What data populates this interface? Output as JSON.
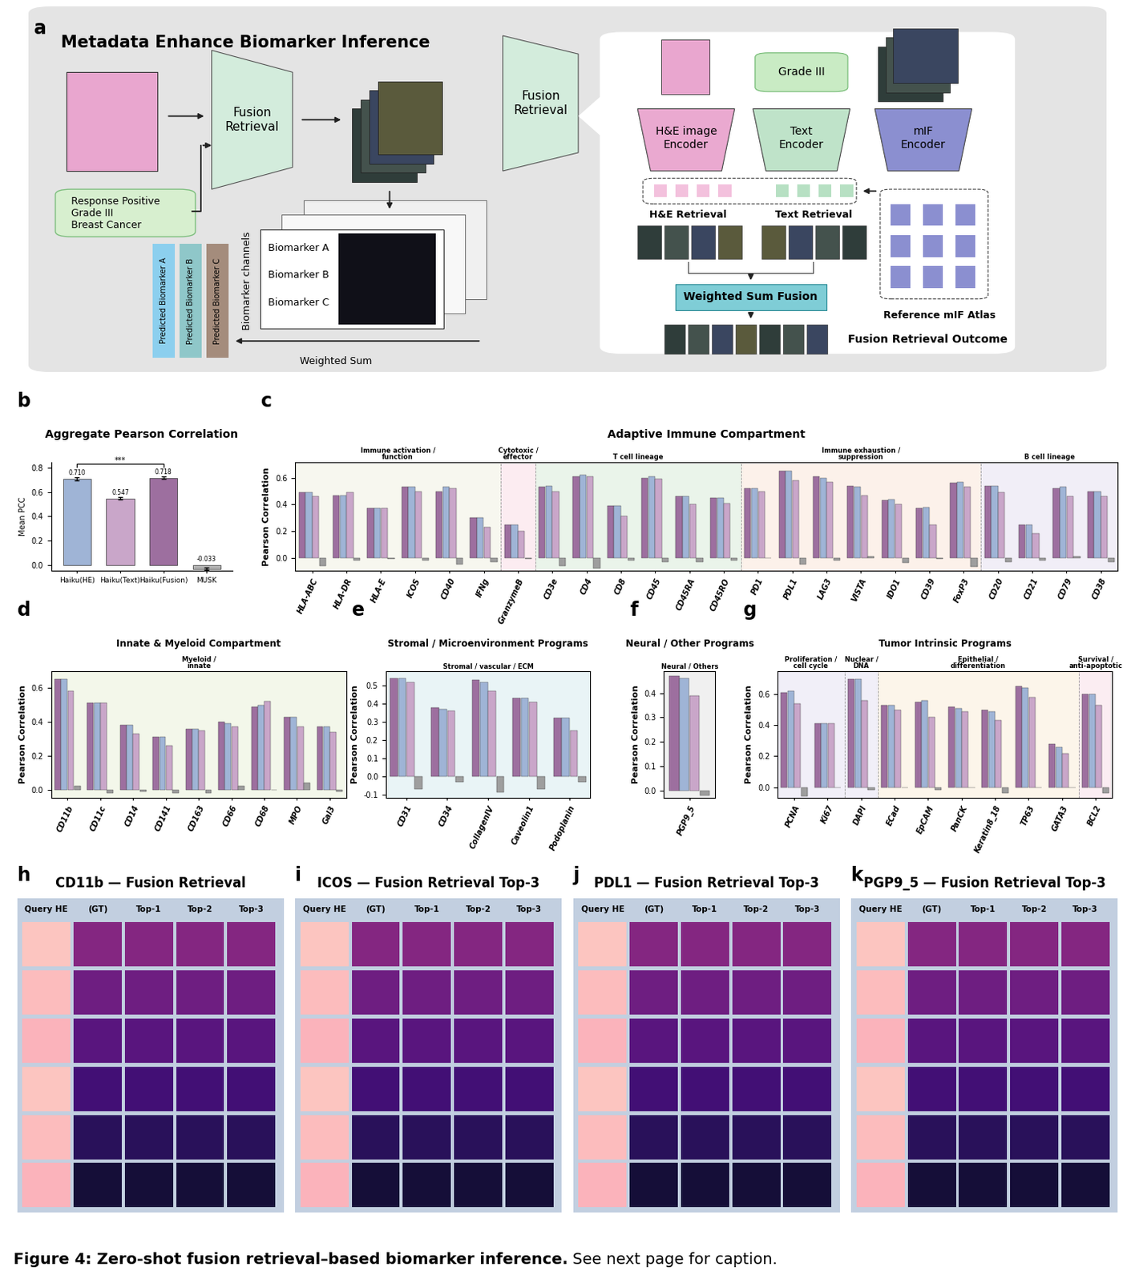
{
  "panel_a": {
    "panel": "a",
    "title": "Metadata Enhance Biomarker Inference",
    "fusion_block": "Fusion\nRetrieval",
    "metadata": "Response Positive\nGrade III\nBreast Cancer",
    "biomarkers": [
      "Biomarker A",
      "Biomarker B",
      "Biomarker C"
    ],
    "channels_label": "Biomarker channels",
    "predicted": [
      "Predicted Biomarker A",
      "Predicted Biomarker B",
      "Predicted Biomarker C"
    ],
    "weighted_sum": "Weighted Sum",
    "grade_box": "Grade III",
    "he_encoder": "H&E image\nEncoder",
    "text_encoder": "Text\nEncoder",
    "mif_encoder": "mIF\nEncoder",
    "he_retrieval": "H&E Retrieval",
    "text_retrieval": "Text Retrieval",
    "fusion_box": "Weighted Sum Fusion",
    "atlas": "Reference mIF Atlas",
    "outcome": "Fusion Retrieval Outcome"
  },
  "chart_data": [
    {
      "panel": "b",
      "type": "bar",
      "title": "Aggregate Pearson Correlation",
      "ylabel": "Mean PCC",
      "categories": [
        "Haiku(HE)",
        "Haiku(Text)",
        "Haiku(Fusion)",
        "MUSK"
      ],
      "values": [
        0.71,
        0.547,
        0.718,
        -0.033
      ],
      "value_labels": [
        "0.710",
        "0.547",
        "0.718",
        "-0.033"
      ],
      "errors": [
        0.01,
        0.01,
        0.01,
        0.01
      ],
      "colors": [
        "#9fb4d6",
        "#c9a6c9",
        "#9d6f9f",
        "#b0b0b0"
      ],
      "data_labels": true,
      "annotations": [
        {
          "text": "***",
          "from": "Haiku(HE)",
          "to": "Haiku(Fusion)"
        }
      ],
      "ylim": [
        -0.05,
        0.85
      ],
      "yticks": [
        0.0,
        0.2,
        0.4,
        0.6,
        0.8
      ]
    },
    {
      "panel": "c",
      "type": "bar",
      "title": "Adaptive Immune Compartment",
      "ylabel": "Pearson Correlation",
      "categories": [
        "HLA-ABC",
        "HLA-DR",
        "HLA-E",
        "ICOS",
        "CD40",
        "IFNg",
        "GranzymeB",
        "CD3e",
        "CD4",
        "CD8",
        "CD45",
        "CD45RA",
        "CD45RO",
        "PD1",
        "PDL1",
        "LAG3",
        "VISTA",
        "IDO1",
        "CD39",
        "FoxP3",
        "CD20",
        "CD21",
        "CD79",
        "CD38"
      ],
      "series": [
        {
          "color": "#9d6f9f",
          "values": [
            0.49,
            0.47,
            0.37,
            0.53,
            0.5,
            0.3,
            0.25,
            0.53,
            0.61,
            0.39,
            0.6,
            0.46,
            0.45,
            0.52,
            0.65,
            0.61,
            0.54,
            0.43,
            0.37,
            0.56,
            0.54,
            0.25,
            0.52,
            0.5
          ]
        },
        {
          "color": "#9fb4d6",
          "values": [
            0.49,
            0.47,
            0.37,
            0.53,
            0.53,
            0.3,
            0.25,
            0.54,
            0.62,
            0.39,
            0.61,
            0.46,
            0.45,
            0.52,
            0.65,
            0.6,
            0.53,
            0.44,
            0.38,
            0.57,
            0.54,
            0.25,
            0.53,
            0.5
          ]
        },
        {
          "color": "#c9a6c9",
          "values": [
            0.46,
            0.49,
            0.375,
            0.5,
            0.52,
            0.23,
            0.2,
            0.5,
            0.61,
            0.31,
            0.59,
            0.4,
            0.41,
            0.5,
            0.58,
            0.57,
            0.47,
            0.4,
            0.25,
            0.53,
            0.49,
            0.18,
            0.46,
            0.46
          ]
        },
        {
          "color": "#9e9e9e",
          "values": [
            -0.06,
            -0.02,
            -0.01,
            -0.02,
            -0.05,
            -0.03,
            -0.01,
            -0.06,
            -0.08,
            -0.02,
            -0.03,
            -0.03,
            -0.02,
            0.0,
            -0.05,
            -0.02,
            0.01,
            -0.04,
            -0.01,
            -0.07,
            -0.03,
            -0.02,
            0.01,
            -0.03
          ]
        }
      ],
      "groups": [
        {
          "label": "Immune activation /\nfunction",
          "categories": [
            "HLA-ABC",
            "HLA-DR",
            "HLA-E",
            "ICOS",
            "CD40",
            "IFNg"
          ]
        },
        {
          "label": "Cytotoxic /\neffector",
          "categories": [
            "GranzymeB"
          ]
        },
        {
          "label": "T cell lineage",
          "categories": [
            "CD3e",
            "CD4",
            "CD8",
            "CD45",
            "CD45RA",
            "CD45RO"
          ]
        },
        {
          "label": "Immune exhaustion /\nsuppression",
          "categories": [
            "PD1",
            "PDL1",
            "LAG3",
            "VISTA",
            "IDO1",
            "CD39",
            "FoxP3"
          ]
        },
        {
          "label": "B cell lineage",
          "categories": [
            "CD20",
            "CD21",
            "CD79",
            "CD38"
          ]
        }
      ],
      "ylim": [
        -0.1,
        0.72
      ],
      "yticks": [
        0.0,
        0.2,
        0.4,
        0.6
      ]
    },
    {
      "panel": "d",
      "type": "bar",
      "title": "Innate & Myeloid Compartment",
      "ylabel": "Pearson Correlation",
      "categories": [
        "CD11b",
        "CD11c",
        "CD14",
        "CD141",
        "CD163",
        "CD66",
        "CD68",
        "MPO",
        "Gal3"
      ],
      "series": [
        {
          "color": "#9d6f9f",
          "values": [
            0.65,
            0.51,
            0.38,
            0.31,
            0.36,
            0.4,
            0.49,
            0.43,
            0.37
          ]
        },
        {
          "color": "#9fb4d6",
          "values": [
            0.65,
            0.51,
            0.38,
            0.31,
            0.36,
            0.39,
            0.5,
            0.43,
            0.37
          ]
        },
        {
          "color": "#c9a6c9",
          "values": [
            0.58,
            0.51,
            0.33,
            0.26,
            0.35,
            0.37,
            0.52,
            0.37,
            0.34
          ]
        },
        {
          "color": "#9e9e9e",
          "values": [
            0.02,
            -0.02,
            -0.01,
            -0.02,
            -0.02,
            0.02,
            0.0,
            0.04,
            -0.01
          ]
        }
      ],
      "groups": [
        {
          "label": "Myeloid /\ninnate",
          "categories": [
            "CD11b",
            "CD11c",
            "CD14",
            "CD141",
            "CD163",
            "CD66",
            "CD68",
            "MPO",
            "Gal3"
          ]
        }
      ],
      "ylim": [
        -0.05,
        0.7
      ],
      "yticks": [
        0.0,
        0.2,
        0.4,
        0.6
      ]
    },
    {
      "panel": "e",
      "type": "bar",
      "title": "Stromal / Microenvironment Programs",
      "ylabel": "Pearson Correlation",
      "categories": [
        "CD31",
        "CD34",
        "CollagenIV",
        "Caveolin1",
        "Podoplanin"
      ],
      "series": [
        {
          "color": "#9d6f9f",
          "values": [
            0.54,
            0.38,
            0.53,
            0.43,
            0.32
          ]
        },
        {
          "color": "#9fb4d6",
          "values": [
            0.54,
            0.37,
            0.52,
            0.43,
            0.32
          ]
        },
        {
          "color": "#c9a6c9",
          "values": [
            0.52,
            0.36,
            0.47,
            0.41,
            0.25
          ]
        },
        {
          "color": "#9e9e9e",
          "values": [
            -0.07,
            -0.03,
            -0.09,
            -0.07,
            -0.03
          ]
        }
      ],
      "groups": [
        {
          "label": "Stromal / vascular / ECM",
          "categories": [
            "CD31",
            "CD34",
            "CollagenIV",
            "Caveolin1",
            "Podoplanin"
          ]
        }
      ],
      "ylim": [
        -0.12,
        0.58
      ],
      "yticks": [
        -0.1,
        0.0,
        0.1,
        0.2,
        0.3,
        0.4,
        0.5
      ]
    },
    {
      "panel": "f",
      "type": "bar",
      "title": "Neural / Other Programs",
      "ylabel": "Pearson Correlation",
      "categories": [
        "PGP9_5"
      ],
      "series": [
        {
          "color": "#9d6f9f",
          "values": [
            0.47
          ]
        },
        {
          "color": "#9fb4d6",
          "values": [
            0.46
          ]
        },
        {
          "color": "#c9a6c9",
          "values": [
            0.39
          ]
        },
        {
          "color": "#9e9e9e",
          "values": [
            -0.02
          ]
        }
      ],
      "groups": [
        {
          "label": "Neural / Others",
          "categories": [
            "PGP9_5"
          ]
        }
      ],
      "ylim": [
        -0.03,
        0.49
      ],
      "yticks": [
        0.0,
        0.1,
        0.2,
        0.3,
        0.4
      ]
    },
    {
      "panel": "g",
      "type": "bar",
      "title": "Tumor Intrinsic Programs",
      "ylabel": "Pearson Correlation",
      "categories": [
        "PCNA",
        "Ki67",
        "DAPI",
        "ECad",
        "EpCAM",
        "PanCK",
        "Keratin8_18",
        "TP63",
        "GATA3",
        "BCL2"
      ],
      "series": [
        {
          "color": "#9d6f9f",
          "values": [
            0.61,
            0.41,
            0.7,
            0.53,
            0.55,
            0.52,
            0.5,
            0.65,
            0.28,
            0.6
          ]
        },
        {
          "color": "#9fb4d6",
          "values": [
            0.62,
            0.41,
            0.7,
            0.53,
            0.56,
            0.51,
            0.49,
            0.64,
            0.26,
            0.6
          ]
        },
        {
          "color": "#c9a6c9",
          "values": [
            0.54,
            0.41,
            0.56,
            0.5,
            0.45,
            0.49,
            0.43,
            0.58,
            0.22,
            0.53
          ]
        },
        {
          "color": "#9e9e9e",
          "values": [
            -0.06,
            0.0,
            -0.02,
            0.0,
            -0.02,
            0.0,
            -0.04,
            0.0,
            0.0,
            -0.04
          ]
        }
      ],
      "groups": [
        {
          "label": "Proliferation /\ncell cycle",
          "categories": [
            "PCNA",
            "Ki67"
          ]
        },
        {
          "label": "Nuclear /\nDNA",
          "categories": [
            "DAPI"
          ]
        },
        {
          "label": "Epithelial /\ndifferentiation",
          "categories": [
            "ECad",
            "EpCAM",
            "PanCK",
            "Keratin8_18",
            "TP63",
            "GATA3"
          ]
        },
        {
          "label": "Survival /\nanti-apoptotic",
          "categories": [
            "BCL2"
          ]
        }
      ],
      "ylim": [
        -0.07,
        0.75
      ],
      "yticks": [
        0.0,
        0.2,
        0.4,
        0.6
      ]
    }
  ],
  "image_grids": [
    {
      "panel": "h",
      "title": "CD11b — Fusion Retrieval",
      "columns": [
        "Query HE",
        "(GT)",
        "Top-1",
        "Top-2",
        "Top-3"
      ]
    },
    {
      "panel": "i",
      "title": "ICOS — Fusion Retrieval Top-3",
      "columns": [
        "Query HE",
        "(GT)",
        "Top-1",
        "Top-2",
        "Top-3"
      ]
    },
    {
      "panel": "j",
      "title": "PDL1 — Fusion Retrieval Top-3",
      "columns": [
        "Query HE",
        "(GT)",
        "Top-1",
        "Top-2",
        "Top-3"
      ]
    },
    {
      "panel": "k",
      "title": "PGP9_5 — Fusion Retrieval Top-3",
      "columns": [
        "Query HE",
        "(GT)",
        "Top-1",
        "Top-2",
        "Top-3"
      ]
    }
  ],
  "caption": {
    "bold": "Figure 4: Zero-shot fusion retrieval–based biomarker inference.",
    "text": "See next page for caption."
  }
}
